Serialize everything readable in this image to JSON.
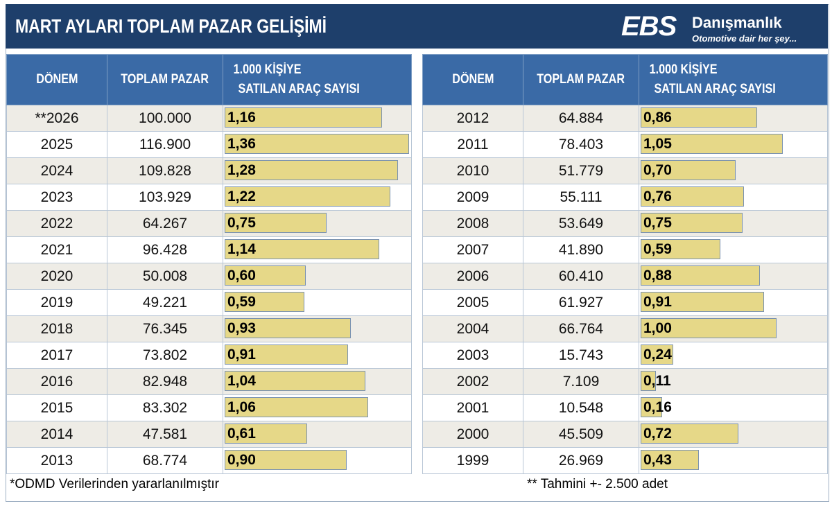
{
  "header": {
    "title": "MART AYLARI TOPLAM PAZAR GELİŞİMİ",
    "logo": {
      "brand": "EBS",
      "name": "Danışmanlık",
      "tagline": "Otomotive dair her şey..."
    }
  },
  "columns": {
    "period": "DÖNEM",
    "total": "TOPLAM  PAZAR",
    "rate_line1": "1.000 KİŞİYE",
    "rate_line2": "SATILAN ARAÇ SAYISI"
  },
  "colors": {
    "header_bg": "#1e3f6b",
    "column_header_bg": "#3a6aa6",
    "bar_fill": "#e6d888",
    "row_alt": "#eeece6"
  },
  "chart_data": {
    "type": "table",
    "title": "MART AYLARI TOPLAM PAZAR GELİŞİMİ",
    "xlabel": "",
    "ylabel": "",
    "bar_max": 1.36,
    "left_rows": [
      {
        "period": "**2026",
        "total": "100.000",
        "rate": "1,16",
        "value": 1.16
      },
      {
        "period": "2025",
        "total": "116.900",
        "rate": "1,36",
        "value": 1.36
      },
      {
        "period": "2024",
        "total": "109.828",
        "rate": "1,28",
        "value": 1.28
      },
      {
        "period": "2023",
        "total": "103.929",
        "rate": "1,22",
        "value": 1.22
      },
      {
        "period": "2022",
        "total": "64.267",
        "rate": "0,75",
        "value": 0.75
      },
      {
        "period": "2021",
        "total": "96.428",
        "rate": "1,14",
        "value": 1.14
      },
      {
        "period": "2020",
        "total": "50.008",
        "rate": "0,60",
        "value": 0.6
      },
      {
        "period": "2019",
        "total": "49.221",
        "rate": "0,59",
        "value": 0.59
      },
      {
        "period": "2018",
        "total": "76.345",
        "rate": "0,93",
        "value": 0.93
      },
      {
        "period": "2017",
        "total": "73.802",
        "rate": "0,91",
        "value": 0.91
      },
      {
        "period": "2016",
        "total": "82.948",
        "rate": "1,04",
        "value": 1.04
      },
      {
        "period": "2015",
        "total": "83.302",
        "rate": "1,06",
        "value": 1.06
      },
      {
        "period": "2014",
        "total": "47.581",
        "rate": "0,61",
        "value": 0.61
      },
      {
        "period": "2013",
        "total": "68.774",
        "rate": "0,90",
        "value": 0.9
      }
    ],
    "right_rows": [
      {
        "period": "2012",
        "total": "64.884",
        "rate": "0,86",
        "value": 0.86
      },
      {
        "period": "2011",
        "total": "78.403",
        "rate": "1,05",
        "value": 1.05
      },
      {
        "period": "2010",
        "total": "51.779",
        "rate": "0,70",
        "value": 0.7
      },
      {
        "period": "2009",
        "total": "55.111",
        "rate": "0,76",
        "value": 0.76
      },
      {
        "period": "2008",
        "total": "53.649",
        "rate": "0,75",
        "value": 0.75
      },
      {
        "period": "2007",
        "total": "41.890",
        "rate": "0,59",
        "value": 0.59
      },
      {
        "period": "2006",
        "total": "60.410",
        "rate": "0,88",
        "value": 0.88
      },
      {
        "period": "2005",
        "total": "61.927",
        "rate": "0,91",
        "value": 0.91
      },
      {
        "period": "2004",
        "total": "66.764",
        "rate": "1,00",
        "value": 1.0
      },
      {
        "period": "2003",
        "total": "15.743",
        "rate": "0,24",
        "value": 0.24
      },
      {
        "period": "2002",
        "total": "7.109",
        "rate": "0,11",
        "value": 0.11
      },
      {
        "period": "2001",
        "total": "10.548",
        "rate": "0,16",
        "value": 0.16
      },
      {
        "period": "2000",
        "total": "45.509",
        "rate": "0,72",
        "value": 0.72
      },
      {
        "period": "1999",
        "total": "26.969",
        "rate": "0,43",
        "value": 0.43
      }
    ]
  },
  "footer": {
    "source": "*ODMD Verilerinden yararlanılmıştır",
    "estimate_note": "** Tahmini +- 2.500 adet"
  }
}
